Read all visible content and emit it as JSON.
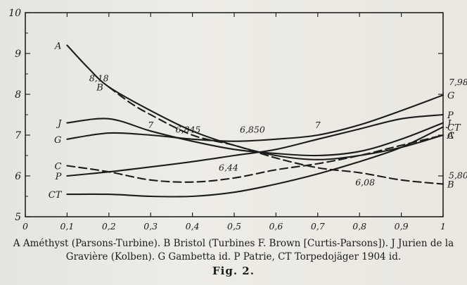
{
  "chart_data": {
    "type": "line",
    "title": "",
    "xlabel": "",
    "ylabel": "",
    "xlim": [
      0,
      1
    ],
    "ylim": [
      5,
      10
    ],
    "grid": false,
    "x_ticks": [
      "0",
      "0,1",
      "0,2",
      "0,3",
      "0,4",
      "0,5",
      "0,6",
      "0,7",
      "0,8",
      "0,9",
      "1"
    ],
    "y_ticks": [
      "5",
      "6",
      "7",
      "8",
      "9",
      "10"
    ],
    "series": [
      {
        "name": "A",
        "dashed": false,
        "x": [
          0.1,
          0.15,
          0.2,
          0.3,
          0.4,
          0.5,
          0.6,
          0.7,
          0.8,
          0.9,
          1.0
        ],
        "y": [
          9.2,
          8.65,
          8.18,
          7.6,
          7.1,
          6.75,
          6.5,
          6.4,
          6.5,
          6.7,
          7.0
        ]
      },
      {
        "name": "B",
        "dashed": true,
        "x": [
          0.2,
          0.25,
          0.3,
          0.4,
          0.5,
          0.6,
          0.7,
          0.8,
          0.9,
          1.0
        ],
        "y": [
          8.18,
          7.8,
          7.5,
          7.0,
          6.75,
          6.44,
          6.2,
          6.08,
          5.9,
          5.8
        ]
      },
      {
        "name": "J",
        "dashed": false,
        "x": [
          0.1,
          0.2,
          0.3,
          0.4,
          0.5,
          0.6,
          0.7,
          0.8,
          0.9,
          1.0
        ],
        "y": [
          7.3,
          7.4,
          7.1,
          6.85,
          6.65,
          6.55,
          6.5,
          6.6,
          6.9,
          7.3
        ]
      },
      {
        "name": "G",
        "dashed": false,
        "x": [
          0.1,
          0.2,
          0.3,
          0.4,
          0.5,
          0.6,
          0.7,
          0.8,
          0.9,
          1.0
        ],
        "y": [
          6.9,
          7.05,
          7.0,
          6.9,
          6.85,
          6.9,
          7.0,
          7.25,
          7.6,
          7.98
        ]
      },
      {
        "name": "C",
        "dashed": true,
        "x": [
          0.1,
          0.2,
          0.3,
          0.4,
          0.5,
          0.6,
          0.7,
          0.8,
          0.9,
          1.0
        ],
        "y": [
          6.25,
          6.1,
          5.9,
          5.85,
          5.95,
          6.15,
          6.3,
          6.5,
          6.75,
          7.0
        ]
      },
      {
        "name": "P",
        "dashed": false,
        "x": [
          0.1,
          0.2,
          0.3,
          0.4,
          0.5,
          0.6,
          0.7,
          0.8,
          0.9,
          1.0
        ],
        "y": [
          6.0,
          6.1,
          6.22,
          6.35,
          6.5,
          6.65,
          6.9,
          7.15,
          7.4,
          7.5
        ]
      },
      {
        "name": "CT",
        "dashed": false,
        "x": [
          0.1,
          0.2,
          0.3,
          0.4,
          0.5,
          0.6,
          0.7,
          0.8,
          0.9,
          1.0
        ],
        "y": [
          5.55,
          5.55,
          5.5,
          5.5,
          5.6,
          5.8,
          6.05,
          6.35,
          6.7,
          7.2
        ]
      }
    ],
    "annotations": [
      {
        "text": "8,18",
        "x": 0.2,
        "y": 8.18
      },
      {
        "text": "6,845",
        "x": 0.4,
        "y": 6.85
      },
      {
        "text": "6,850",
        "x": 0.5,
        "y": 6.85
      },
      {
        "text": "6,44",
        "x": 0.5,
        "y": 6.44
      },
      {
        "text": "6,08",
        "x": 0.8,
        "y": 6.08
      },
      {
        "text": "7,98",
        "x": 1.0,
        "y": 7.98
      },
      {
        "text": "5,80",
        "x": 1.0,
        "y": 5.8
      },
      {
        "text": "7",
        "x": 0.3,
        "y": 7.0
      },
      {
        "text": "7",
        "x": 0.7,
        "y": 7.0
      }
    ],
    "caption_line_1": "A Améthyst (Parsons-Turbine).  B Bristol (Turbines F. Brown [Curtis-Parsons]).  J Jurien de la",
    "caption_line_2": "Gravière (Kolben).  G Gambetta id.  P Patrie,  CT Torpedojäger 1904 id.",
    "figure_label": "Fig. 2."
  }
}
